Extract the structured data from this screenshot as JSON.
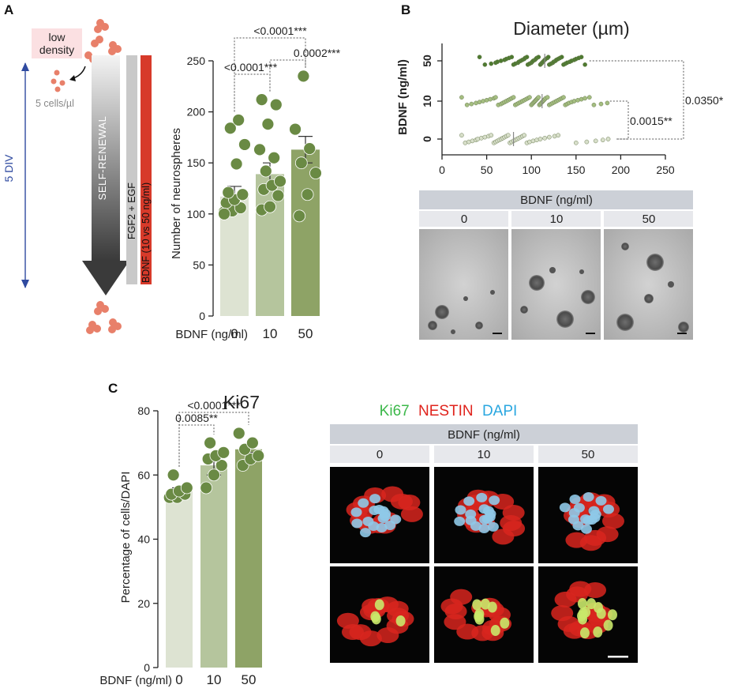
{
  "figure": {
    "panel_labels": [
      "A",
      "B",
      "C"
    ]
  },
  "schematic": {
    "low_density_label": [
      "low",
      "density"
    ],
    "cells_label": "5 cells/µl",
    "div_label": "5 DIV",
    "self_renewal_label": "SELF-RENEWAL",
    "fgf_label": "FGF2 + EGF",
    "bdnf_bar_label": "BDNF (10 vs 50 ng/ml)",
    "colors": {
      "cells": "#e8806a",
      "low_density_bg": "#fbe0e2",
      "div_line": "#2f4aa0",
      "fgf_bar": "#c9c9c9",
      "bdnf_bar": "#d73a2a"
    }
  },
  "chart_data": [
    {
      "id": "neurospheres",
      "type": "bar",
      "categories": [
        "0",
        "10",
        "50"
      ],
      "values": [
        117,
        139,
        163
      ],
      "sem": [
        10,
        11,
        13
      ],
      "points": [
        [
          102,
          103,
          106,
          111,
          114,
          119,
          121,
          149,
          168,
          184,
          192,
          100
        ],
        [
          104,
          107,
          118,
          124,
          128,
          132,
          142,
          155,
          163,
          188,
          207,
          212
        ],
        [
          98,
          119,
          140,
          150,
          164,
          183,
          235
        ]
      ],
      "colors": [
        "#dde3d2",
        "#b5c59d",
        "#8ea366"
      ],
      "point_color": "#6a8a44",
      "title": "",
      "xlabel": "BDNF (ng/ml)",
      "ylabel": "Number of neurospheres",
      "ylim": [
        0,
        250
      ],
      "yticks": [
        0,
        50,
        100,
        150,
        200,
        250
      ],
      "brackets": [
        {
          "from": 0,
          "to": 2,
          "label": "<0.0001***"
        },
        {
          "from": 1,
          "to": 2,
          "label": "0.0002***"
        },
        {
          "from": 0,
          "to": 1,
          "label": "<0.0001***"
        }
      ]
    },
    {
      "id": "diameter",
      "type": "scatter",
      "title": "Diameter (µm)",
      "ylabel": "BDNF (ng/ml)",
      "categories": [
        "50",
        "10",
        "0"
      ],
      "xlim": [
        0,
        250
      ],
      "xticks": [
        0,
        50,
        100,
        150,
        200,
        250
      ],
      "means": [
        115,
        112,
        80
      ],
      "series": [
        {
          "values": [
            42,
            48,
            55,
            60,
            62,
            66,
            70,
            72,
            75,
            78,
            80,
            82,
            85,
            86,
            88,
            90,
            92,
            93,
            95,
            96,
            98,
            100,
            101,
            102,
            104,
            105,
            106,
            108,
            110,
            111,
            112,
            113,
            114,
            115,
            116,
            118,
            119,
            120,
            122,
            124,
            125,
            127,
            128,
            130,
            132,
            134,
            136,
            138,
            140,
            143,
            145,
            148,
            150,
            153,
            156,
            160
          ],
          "color": "#4e7a30"
        },
        {
          "values": [
            22,
            28,
            33,
            38,
            42,
            46,
            50,
            54,
            58,
            60,
            63,
            66,
            68,
            70,
            72,
            74,
            76,
            78,
            80,
            82,
            84,
            86,
            88,
            90,
            92,
            94,
            96,
            98,
            100,
            101,
            102,
            103,
            104,
            105,
            106,
            107,
            108,
            109,
            110,
            111,
            112,
            113,
            114,
            115,
            116,
            118,
            120,
            122,
            124,
            126,
            128,
            130,
            132,
            134,
            136,
            138,
            140,
            142,
            145,
            148,
            152,
            156,
            160,
            165,
            170,
            178,
            185
          ],
          "color": "#a4bd80"
        },
        {
          "values": [
            22,
            26,
            30,
            34,
            38,
            40,
            44,
            48,
            52,
            55,
            58,
            60,
            62,
            64,
            66,
            68,
            70,
            72,
            74,
            76,
            78,
            80,
            82,
            84,
            86,
            88,
            90,
            92,
            95,
            98,
            102,
            106,
            110,
            115,
            120,
            126,
            130,
            150,
            162,
            172,
            180,
            186
          ],
          "color": "#d7dec9"
        }
      ],
      "brackets": [
        {
          "from": 0,
          "to": 2,
          "label": "0.0350*"
        },
        {
          "from": 1,
          "to": 2,
          "label": "0.0015**"
        }
      ]
    },
    {
      "id": "ki67",
      "type": "bar",
      "title": "Ki67",
      "categories": [
        "0",
        "10",
        "50"
      ],
      "values": [
        55,
        63,
        68
      ],
      "sem": [
        1,
        3,
        1
      ],
      "points": [
        [
          53,
          53,
          54,
          54,
          55,
          56,
          60
        ],
        [
          56,
          60,
          63,
          65,
          66,
          67,
          70
        ],
        [
          63,
          65,
          66,
          68,
          70,
          73
        ]
      ],
      "colors": [
        "#dde3d2",
        "#b5c59d",
        "#8ea366"
      ],
      "point_color": "#6a8a44",
      "xlabel": "BDNF (ng/ml)",
      "ylabel": "Percentage of cells/DAPI",
      "ylim": [
        0,
        80
      ],
      "yticks": [
        0,
        20,
        40,
        60,
        80
      ],
      "brackets": [
        {
          "from": 0,
          "to": 2,
          "label": "<0.0001***"
        },
        {
          "from": 0,
          "to": 1,
          "label": "0.0085**"
        }
      ]
    }
  ],
  "micrographs_b": {
    "header": "BDNF (ng/ml)",
    "columns": [
      "0",
      "10",
      "50"
    ]
  },
  "micrographs_c": {
    "stain_labels": [
      {
        "text": "Ki67",
        "color": "#3cb84a"
      },
      {
        "text": "NESTIN",
        "color": "#e0241d"
      },
      {
        "text": "DAPI",
        "color": "#2aa7e0"
      }
    ],
    "header": "BDNF (ng/ml)",
    "columns": [
      "0",
      "10",
      "50"
    ]
  }
}
